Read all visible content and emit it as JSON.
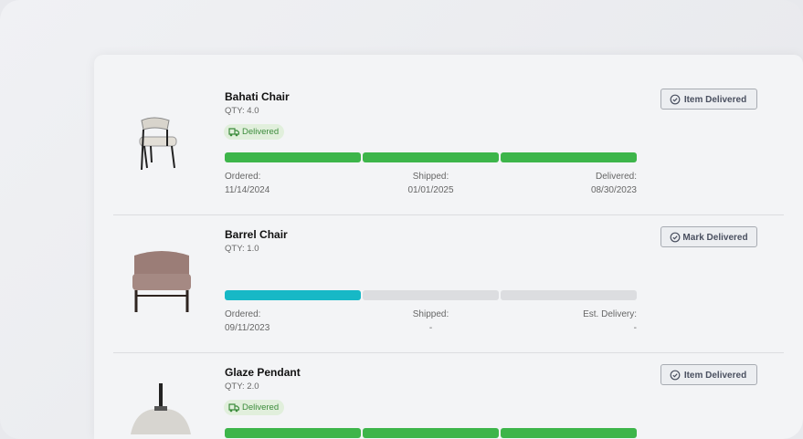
{
  "items": [
    {
      "name": "Bahati Chair",
      "qty": "QTY: 4.0",
      "badge": "Delivered",
      "button": "Item Delivered",
      "progress_colors": [
        "#3db54a",
        "#3db54a",
        "#3db54a"
      ],
      "steps": [
        {
          "label": "Ordered:",
          "date": "11/14/2024"
        },
        {
          "label": "Shipped:",
          "date": "01/01/2025"
        },
        {
          "label": "Delivered:",
          "date": "08/30/2023"
        }
      ]
    },
    {
      "name": "Barrel Chair",
      "qty": "QTY: 1.0",
      "button": "Mark Delivered",
      "progress_colors": [
        "#17b8c6",
        "#dcdde0",
        "#dcdde0"
      ],
      "steps": [
        {
          "label": "Ordered:",
          "date": "09/11/2023"
        },
        {
          "label": "Shipped:",
          "date": "-"
        },
        {
          "label": "Est. Delivery:",
          "date": "-"
        }
      ]
    },
    {
      "name": "Glaze Pendant",
      "qty": "QTY: 2.0",
      "badge": "Delivered",
      "button": "Item Delivered",
      "progress_colors": [
        "#3db54a",
        "#3db54a",
        "#3db54a"
      ]
    }
  ]
}
